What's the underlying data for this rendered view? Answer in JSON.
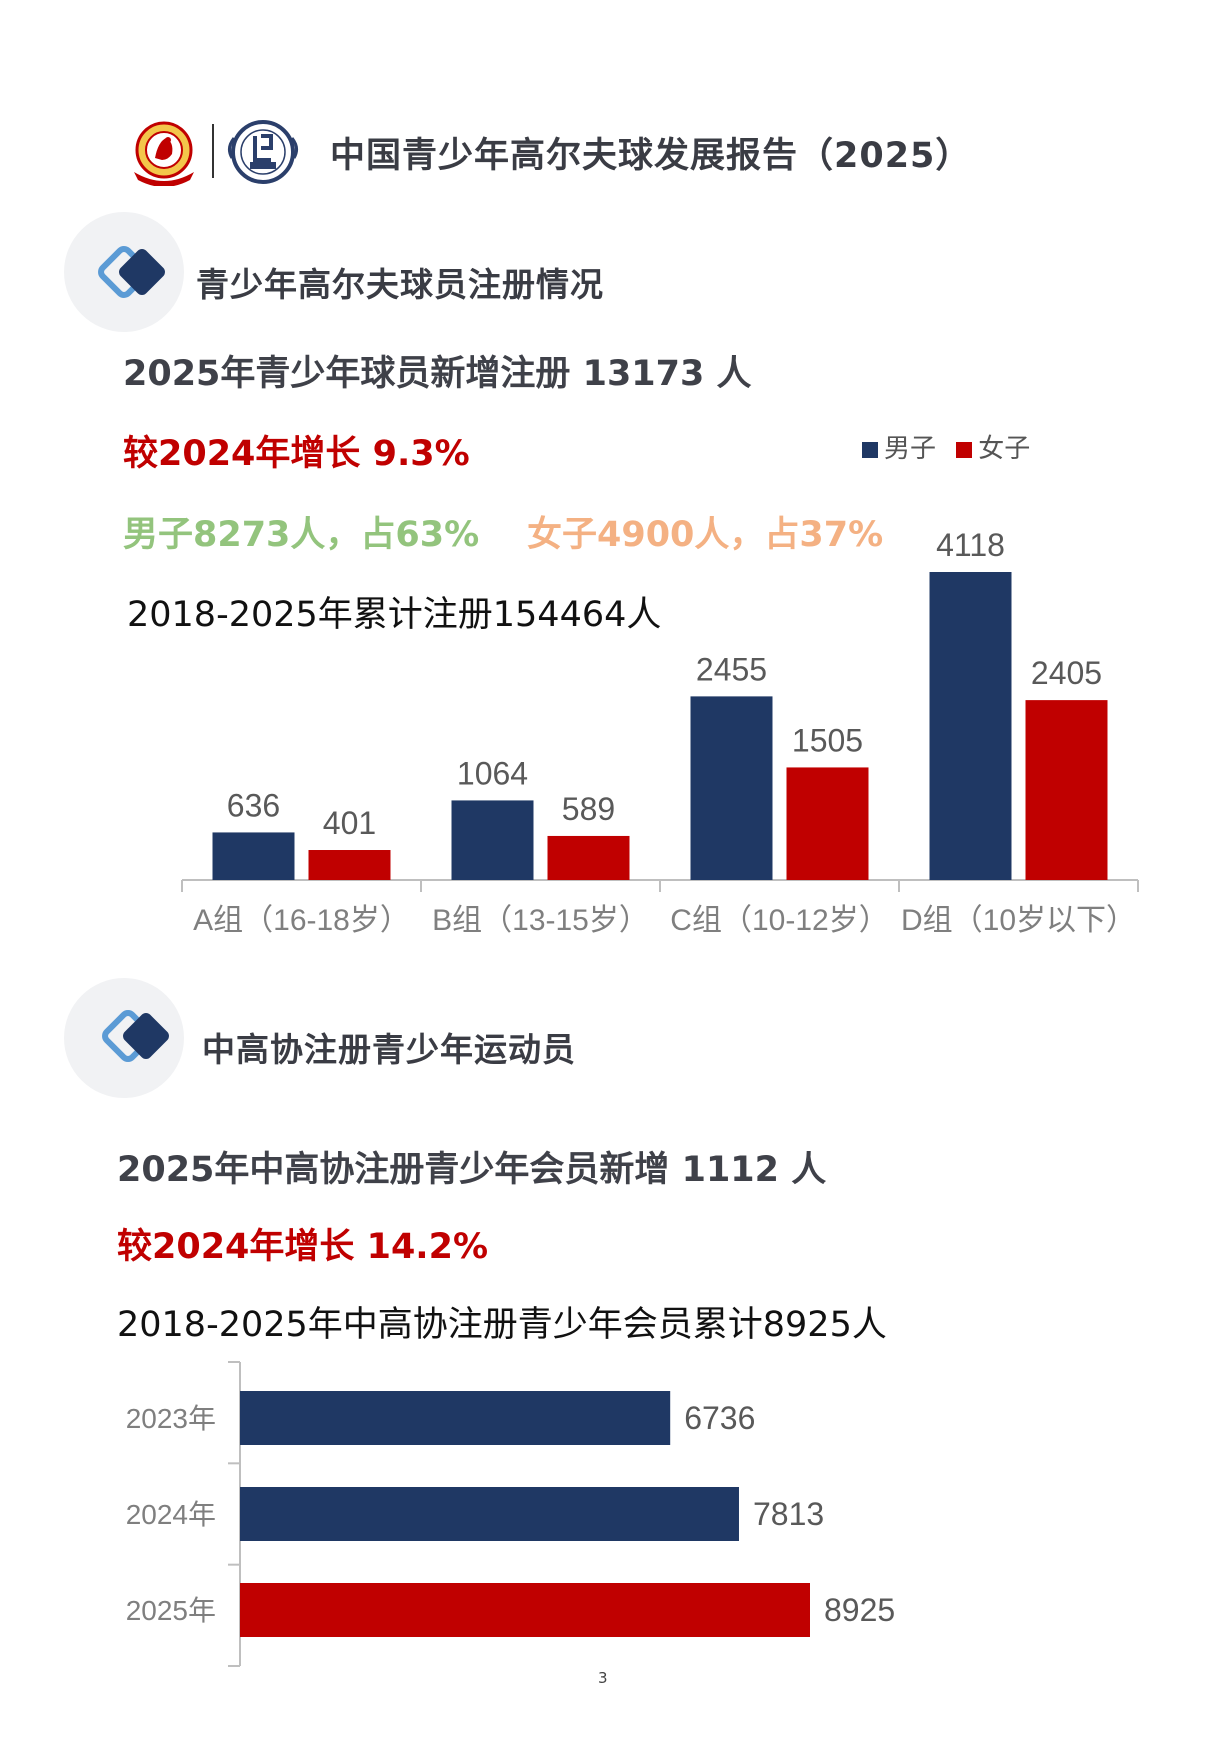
{
  "header": {
    "title": "中国青少年高尔夫球发展报告（2025）"
  },
  "section1": {
    "heading": "青少年高尔夫球员注册情况",
    "new_registrations": "2025年青少年球员新增注册  13173  人",
    "growth": "较2024年增长  9.3%",
    "male_share": "男子8273人，占63%",
    "female_share": "女子4900人，占37%",
    "cumulative": "2018-2025年累计注册154464人"
  },
  "section2": {
    "heading": "中高协注册青少年运动员",
    "new_members": "2025年中高协注册青少年会员新增  1112  人",
    "growth": "较2024年增长  14.2%",
    "cumulative": "2018-2025年中高协注册青少年会员累计8925人"
  },
  "page_number": "3",
  "colors": {
    "navy": "#1f3864",
    "red": "#c00000",
    "green": "#93c47d",
    "orange": "#f4b183"
  },
  "chart_data": [
    {
      "type": "bar",
      "categories": [
        "A组（16-18岁）",
        "B组（13-15岁）",
        "C组（10-12岁）",
        "D组（10岁以下）"
      ],
      "series": [
        {
          "name": "男子",
          "color": "#1f3864",
          "values": [
            636,
            1064,
            2455,
            4118
          ]
        },
        {
          "name": "女子",
          "color": "#c00000",
          "values": [
            401,
            589,
            1505,
            2405
          ]
        }
      ],
      "ylim": [
        0,
        4118
      ],
      "legend": "top-right",
      "grid": false
    },
    {
      "type": "bar",
      "orientation": "horizontal",
      "categories": [
        "2023年",
        "2024年",
        "2025年"
      ],
      "values": [
        6736,
        7813,
        8925
      ],
      "bar_colors": [
        "#1f3864",
        "#1f3864",
        "#c00000"
      ],
      "xlim": [
        0,
        8925
      ],
      "grid": false
    }
  ]
}
